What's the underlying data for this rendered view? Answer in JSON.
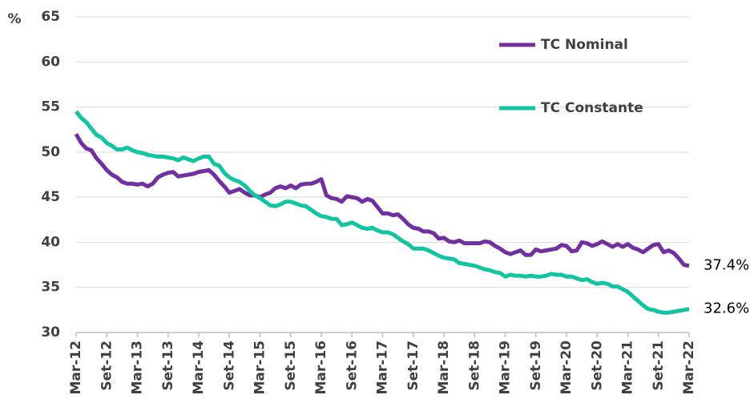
{
  "chart_data": {
    "type": "line",
    "y_label": "%",
    "categories": [
      "Mar-12",
      null,
      null,
      null,
      null,
      null,
      "Set-12",
      null,
      null,
      null,
      null,
      null,
      "Mar-13",
      null,
      null,
      null,
      null,
      null,
      "Set-13",
      null,
      null,
      null,
      null,
      null,
      "Mar-14",
      null,
      null,
      null,
      null,
      null,
      "Set-14",
      null,
      null,
      null,
      null,
      null,
      "Mar-15",
      null,
      null,
      null,
      null,
      null,
      "Set-15",
      null,
      null,
      null,
      null,
      null,
      "Mar-16",
      null,
      null,
      null,
      null,
      null,
      "Set-16",
      null,
      null,
      null,
      null,
      null,
      "Mar-17",
      null,
      null,
      null,
      null,
      null,
      "Set-17",
      null,
      null,
      null,
      null,
      null,
      "Mar-18",
      null,
      null,
      null,
      null,
      null,
      "Set-18",
      null,
      null,
      null,
      null,
      null,
      "Mar-19",
      null,
      null,
      null,
      null,
      null,
      "Set-19",
      null,
      null,
      null,
      null,
      null,
      "Mar-20",
      null,
      null,
      null,
      null,
      null,
      "Set-20",
      null,
      null,
      null,
      null,
      null,
      "Mar-21",
      null,
      null,
      null,
      null,
      null,
      "Set-21",
      null,
      null,
      null,
      null,
      null,
      "Mar-22"
    ],
    "series": [
      {
        "name": "TC Nominal",
        "color": "#7030a0",
        "values": [
          52,
          51,
          50.4,
          50.2,
          49.3,
          48.7,
          48,
          47.5,
          47.2,
          46.7,
          46.5,
          46.5,
          46.4,
          46.5,
          46.2,
          46.5,
          47.2,
          47.5,
          47.7,
          47.8,
          47.3,
          47.4,
          47.5,
          47.6,
          47.8,
          47.9,
          48,
          47.5,
          46.8,
          46.2,
          45.5,
          45.7,
          45.9,
          45.5,
          45.2,
          45.2,
          45,
          45.3,
          45.5,
          46,
          46.2,
          46,
          46.3,
          46,
          46.4,
          46.5,
          46.5,
          46.7,
          47,
          45.2,
          44.9,
          44.8,
          44.5,
          45.1,
          45,
          44.9,
          44.5,
          44.8,
          44.6,
          43.9,
          43.2,
          43.2,
          43,
          43.1,
          42.6,
          42,
          41.6,
          41.5,
          41.2,
          41.2,
          41,
          40.4,
          40.5,
          40.1,
          40,
          40.2,
          39.9,
          39.9,
          39.9,
          39.9,
          40.1,
          40,
          39.6,
          39.3,
          38.9,
          38.7,
          38.9,
          39.1,
          38.6,
          38.6,
          39.2,
          39,
          39.1,
          39.2,
          39.3,
          39.7,
          39.6,
          39,
          39.1,
          40,
          39.9,
          39.6,
          39.8,
          40.1,
          39.8,
          39.5,
          39.8,
          39.5,
          39.8,
          39.4,
          39.2,
          38.9,
          39.3,
          39.7,
          39.8,
          38.9,
          39.1,
          38.8,
          38.2,
          37.5,
          37.4
        ],
        "value_labels": [
          null,
          null,
          null,
          null,
          null,
          null,
          null,
          null,
          null,
          null,
          null,
          null,
          null,
          null,
          null,
          null,
          null,
          null,
          null,
          null,
          null,
          null,
          null,
          null,
          null,
          null,
          null,
          null,
          null,
          null,
          null,
          null,
          null,
          null,
          null,
          null,
          null,
          null,
          null,
          null,
          null,
          null,
          null,
          null,
          null,
          null,
          null,
          null,
          null,
          null,
          null,
          null,
          null,
          null,
          null,
          null,
          null,
          null,
          null,
          null,
          null,
          null,
          null,
          null,
          null,
          null,
          null,
          null,
          null,
          null,
          null,
          null,
          null,
          null,
          null,
          null,
          null,
          null,
          null,
          null,
          null,
          null,
          null,
          null,
          null,
          null,
          null,
          null,
          null,
          null,
          null,
          null,
          null,
          null,
          null,
          null,
          null,
          null,
          null,
          null,
          null,
          null,
          null,
          null,
          null,
          null,
          null,
          null,
          null,
          null,
          null,
          null,
          null,
          null,
          null,
          null,
          null,
          null,
          null,
          null,
          "37.4%"
        ]
      },
      {
        "name": "TC Constante",
        "color": "#13c4a3",
        "values": [
          54.5,
          53.8,
          53.3,
          52.6,
          51.9,
          51.6,
          51,
          50.7,
          50.3,
          50.3,
          50.5,
          50.2,
          50,
          49.9,
          49.7,
          49.6,
          49.5,
          49.5,
          49.4,
          49.3,
          49.1,
          49.4,
          49.2,
          49,
          49.3,
          49.5,
          49.5,
          48.7,
          48.5,
          47.7,
          47.2,
          46.9,
          46.7,
          46.3,
          45.7,
          45.2,
          44.9,
          44.5,
          44.1,
          44,
          44.2,
          44.5,
          44.5,
          44.3,
          44.1,
          44,
          43.6,
          43.2,
          42.9,
          42.8,
          42.6,
          42.6,
          41.9,
          42,
          42.2,
          41.9,
          41.6,
          41.5,
          41.6,
          41.3,
          41.1,
          41.1,
          40.9,
          40.5,
          40.1,
          39.8,
          39.3,
          39.3,
          39.3,
          39.1,
          38.8,
          38.5,
          38.3,
          38.2,
          38.1,
          37.7,
          37.6,
          37.5,
          37.4,
          37.2,
          37,
          36.9,
          36.7,
          36.6,
          36.2,
          36.4,
          36.3,
          36.3,
          36.2,
          36.3,
          36.2,
          36.2,
          36.3,
          36.5,
          36.4,
          36.4,
          36.2,
          36.2,
          36,
          35.8,
          35.9,
          35.6,
          35.4,
          35.5,
          35.4,
          35.1,
          35.1,
          34.8,
          34.5,
          34,
          33.5,
          33,
          32.6,
          32.5,
          32.3,
          32.2,
          32.2,
          32.3,
          32.4,
          32.5,
          32.6
        ],
        "value_labels": [
          null,
          null,
          null,
          null,
          null,
          null,
          null,
          null,
          null,
          null,
          null,
          null,
          null,
          null,
          null,
          null,
          null,
          null,
          null,
          null,
          null,
          null,
          null,
          null,
          null,
          null,
          null,
          null,
          null,
          null,
          null,
          null,
          null,
          null,
          null,
          null,
          null,
          null,
          null,
          null,
          null,
          null,
          null,
          null,
          null,
          null,
          null,
          null,
          null,
          null,
          null,
          null,
          null,
          null,
          null,
          null,
          null,
          null,
          null,
          null,
          null,
          null,
          null,
          null,
          null,
          null,
          null,
          null,
          null,
          null,
          null,
          null,
          null,
          null,
          null,
          null,
          null,
          null,
          null,
          null,
          null,
          null,
          null,
          null,
          null,
          null,
          null,
          null,
          null,
          null,
          null,
          null,
          null,
          null,
          null,
          null,
          null,
          null,
          null,
          null,
          null,
          null,
          null,
          null,
          null,
          null,
          null,
          null,
          null,
          null,
          null,
          null,
          null,
          null,
          null,
          null,
          null,
          null,
          null,
          null,
          "32.6%"
        ]
      }
    ],
    "ylim": [
      30,
      65
    ],
    "yticks": [
      30,
      35,
      40,
      45,
      50,
      55,
      60,
      65
    ],
    "grid": true,
    "legend": "top-right"
  }
}
